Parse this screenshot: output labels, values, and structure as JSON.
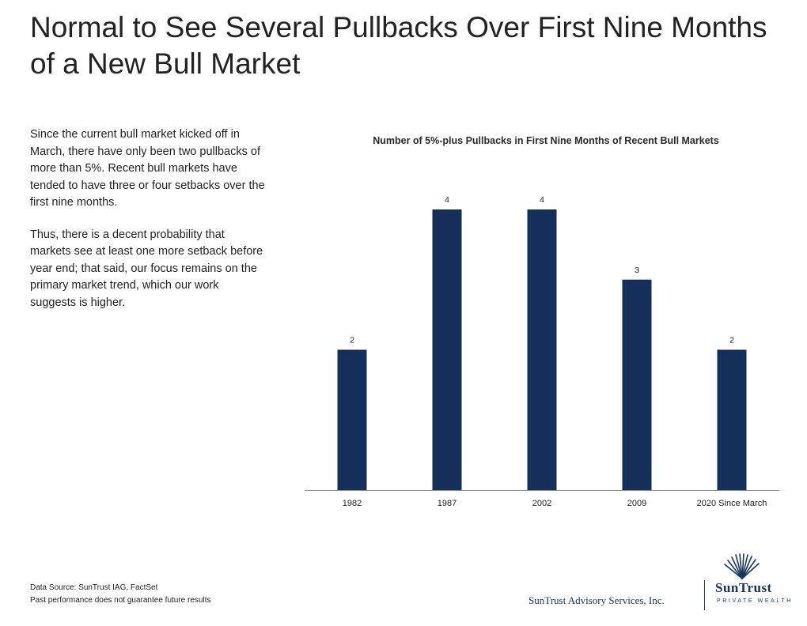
{
  "slide": {
    "title": "Normal to See Several Pullbacks Over First Nine Months of a New Bull Market",
    "paragraphs": [
      "Since the current bull market kicked off in March, there have only been two pullbacks of more than 5%. Recent bull markets have tended to have three or four setbacks over the first nine months.",
      "Thus, there is a decent probability that markets see at least one more setback before year end; that said, our focus remains on the primary market trend, which our work suggests is higher."
    ]
  },
  "chart_data": {
    "type": "bar",
    "title": "Number of 5%-plus Pullbacks in First Nine Months of Recent Bull Markets",
    "categories": [
      "1982",
      "1987",
      "2002",
      "2009",
      "2020 Since March"
    ],
    "values": [
      2,
      4,
      4,
      3,
      2
    ],
    "data_labels": [
      "2",
      "4",
      "4",
      "3",
      "2"
    ],
    "ylim": [
      0,
      4
    ],
    "xlabel": "",
    "ylabel": "",
    "grid": false,
    "legend": "none",
    "bar_color": "#152f5b"
  },
  "footer": {
    "source": "Data Source: SunTrust IAG, FactSet",
    "disclaimer": "Past performance does not guarantee future results",
    "company": "SunTrust Advisory Services, Inc.",
    "logo_text": "SunTrust",
    "logo_subtext": "PRIVATE WEALTH",
    "logo_icon": "sun-rays-icon"
  }
}
